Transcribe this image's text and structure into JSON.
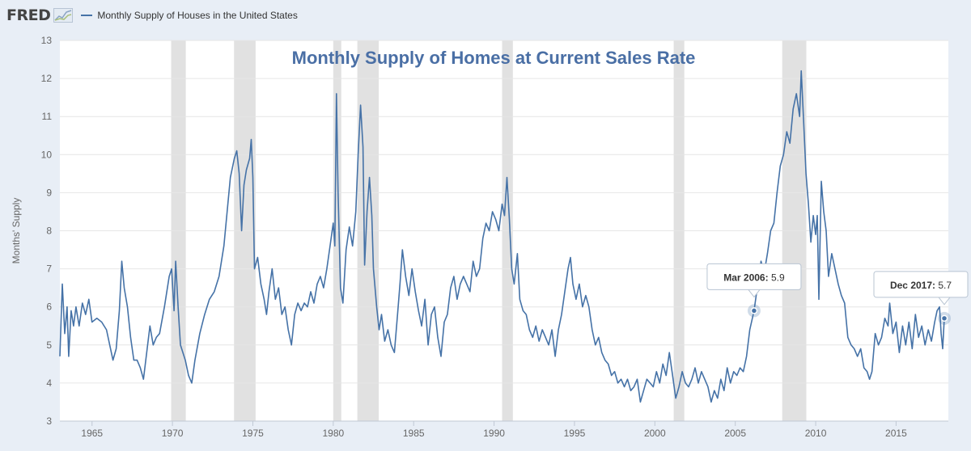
{
  "brand": {
    "logo_text": "FRED",
    "chart_icon": "chart-line-icon"
  },
  "legend": {
    "series_label": "Monthly Supply of Houses in the United States"
  },
  "colors": {
    "line": "#4572a7",
    "recession": "#e1e1e1",
    "grid": "#e6e6e6",
    "title": "#4a6fa5",
    "axis_text": "#666666",
    "page_bg": "#e8eef6"
  },
  "chart_data": {
    "type": "line",
    "title": "Monthly Supply of Homes at Current Sales Rate",
    "xlabel": "",
    "ylabel": "Months' Supply",
    "xlim": [
      1963.0,
      2018.25
    ],
    "ylim": [
      3,
      13
    ],
    "yticks": [
      3,
      4,
      5,
      6,
      7,
      8,
      9,
      10,
      11,
      12,
      13
    ],
    "xticks": [
      1965,
      1970,
      1975,
      1980,
      1985,
      1990,
      1995,
      2000,
      2005,
      2010,
      2015
    ],
    "grid": true,
    "legend_position": "top-left",
    "recessions": [
      [
        1969.92,
        1970.83
      ],
      [
        1973.83,
        1975.17
      ],
      [
        1980.0,
        1980.5
      ],
      [
        1981.5,
        1982.83
      ],
      [
        1990.5,
        1991.17
      ],
      [
        2001.17,
        2001.83
      ],
      [
        2007.92,
        2009.42
      ]
    ],
    "series": [
      {
        "name": "Monthly Supply of Houses in the United States",
        "points": [
          [
            1963.0,
            4.7
          ],
          [
            1963.15,
            6.6
          ],
          [
            1963.3,
            5.3
          ],
          [
            1963.45,
            6.0
          ],
          [
            1963.55,
            4.7
          ],
          [
            1963.7,
            5.9
          ],
          [
            1963.85,
            5.5
          ],
          [
            1964.0,
            6.0
          ],
          [
            1964.2,
            5.5
          ],
          [
            1964.4,
            6.1
          ],
          [
            1964.6,
            5.8
          ],
          [
            1964.8,
            6.2
          ],
          [
            1965.0,
            5.6
          ],
          [
            1965.3,
            5.7
          ],
          [
            1965.6,
            5.6
          ],
          [
            1965.9,
            5.4
          ],
          [
            1966.1,
            5.0
          ],
          [
            1966.3,
            4.6
          ],
          [
            1966.5,
            4.9
          ],
          [
            1966.7,
            5.9
          ],
          [
            1966.85,
            7.2
          ],
          [
            1967.0,
            6.5
          ],
          [
            1967.2,
            6.0
          ],
          [
            1967.4,
            5.2
          ],
          [
            1967.6,
            4.6
          ],
          [
            1967.8,
            4.6
          ],
          [
            1968.0,
            4.4
          ],
          [
            1968.2,
            4.1
          ],
          [
            1968.4,
            4.8
          ],
          [
            1968.6,
            5.5
          ],
          [
            1968.8,
            5.0
          ],
          [
            1969.0,
            5.2
          ],
          [
            1969.2,
            5.3
          ],
          [
            1969.5,
            6.0
          ],
          [
            1969.8,
            6.8
          ],
          [
            1969.95,
            7.0
          ],
          [
            1970.1,
            5.9
          ],
          [
            1970.2,
            7.2
          ],
          [
            1970.35,
            6.0
          ],
          [
            1970.5,
            5.0
          ],
          [
            1970.8,
            4.6
          ],
          [
            1971.0,
            4.2
          ],
          [
            1971.2,
            4.0
          ],
          [
            1971.4,
            4.6
          ],
          [
            1971.7,
            5.3
          ],
          [
            1972.0,
            5.8
          ],
          [
            1972.3,
            6.2
          ],
          [
            1972.6,
            6.4
          ],
          [
            1972.9,
            6.8
          ],
          [
            1973.2,
            7.6
          ],
          [
            1973.4,
            8.5
          ],
          [
            1973.6,
            9.4
          ],
          [
            1973.85,
            9.9
          ],
          [
            1974.0,
            10.1
          ],
          [
            1974.15,
            9.5
          ],
          [
            1974.3,
            8.0
          ],
          [
            1974.45,
            9.2
          ],
          [
            1974.6,
            9.6
          ],
          [
            1974.8,
            9.9
          ],
          [
            1974.9,
            10.4
          ],
          [
            1975.0,
            9.4
          ],
          [
            1975.1,
            7.0
          ],
          [
            1975.3,
            7.3
          ],
          [
            1975.5,
            6.6
          ],
          [
            1975.7,
            6.2
          ],
          [
            1975.85,
            5.8
          ],
          [
            1976.0,
            6.4
          ],
          [
            1976.2,
            7.0
          ],
          [
            1976.4,
            6.2
          ],
          [
            1976.6,
            6.5
          ],
          [
            1976.8,
            5.8
          ],
          [
            1977.0,
            6.0
          ],
          [
            1977.2,
            5.4
          ],
          [
            1977.4,
            5.0
          ],
          [
            1977.6,
            5.8
          ],
          [
            1977.8,
            6.1
          ],
          [
            1978.0,
            5.9
          ],
          [
            1978.2,
            6.1
          ],
          [
            1978.4,
            6.0
          ],
          [
            1978.6,
            6.4
          ],
          [
            1978.8,
            6.1
          ],
          [
            1979.0,
            6.6
          ],
          [
            1979.2,
            6.8
          ],
          [
            1979.4,
            6.5
          ],
          [
            1979.6,
            7.0
          ],
          [
            1979.8,
            7.6
          ],
          [
            1980.0,
            8.2
          ],
          [
            1980.1,
            7.6
          ],
          [
            1980.2,
            11.6
          ],
          [
            1980.3,
            9.0
          ],
          [
            1980.45,
            6.5
          ],
          [
            1980.6,
            6.1
          ],
          [
            1980.8,
            7.5
          ],
          [
            1981.0,
            8.1
          ],
          [
            1981.2,
            7.6
          ],
          [
            1981.4,
            8.5
          ],
          [
            1981.55,
            10.0
          ],
          [
            1981.7,
            11.3
          ],
          [
            1981.85,
            10.2
          ],
          [
            1981.95,
            7.1
          ],
          [
            1982.1,
            8.5
          ],
          [
            1982.25,
            9.4
          ],
          [
            1982.4,
            8.4
          ],
          [
            1982.5,
            7.0
          ],
          [
            1982.7,
            6.0
          ],
          [
            1982.85,
            5.4
          ],
          [
            1983.0,
            5.8
          ],
          [
            1983.2,
            5.1
          ],
          [
            1983.4,
            5.4
          ],
          [
            1983.6,
            5.0
          ],
          [
            1983.8,
            4.8
          ],
          [
            1984.0,
            5.8
          ],
          [
            1984.15,
            6.6
          ],
          [
            1984.3,
            7.5
          ],
          [
            1984.5,
            6.8
          ],
          [
            1984.7,
            6.3
          ],
          [
            1984.9,
            7.0
          ],
          [
            1985.1,
            6.4
          ],
          [
            1985.3,
            5.9
          ],
          [
            1985.5,
            5.5
          ],
          [
            1985.7,
            6.2
          ],
          [
            1985.9,
            5.0
          ],
          [
            1986.1,
            5.8
          ],
          [
            1986.3,
            6.0
          ],
          [
            1986.5,
            5.2
          ],
          [
            1986.7,
            4.7
          ],
          [
            1986.9,
            5.6
          ],
          [
            1987.1,
            5.8
          ],
          [
            1987.3,
            6.5
          ],
          [
            1987.5,
            6.8
          ],
          [
            1987.7,
            6.2
          ],
          [
            1987.9,
            6.6
          ],
          [
            1988.1,
            6.8
          ],
          [
            1988.3,
            6.6
          ],
          [
            1988.5,
            6.4
          ],
          [
            1988.7,
            7.2
          ],
          [
            1988.9,
            6.8
          ],
          [
            1989.1,
            7.0
          ],
          [
            1989.3,
            7.8
          ],
          [
            1989.5,
            8.2
          ],
          [
            1989.7,
            8.0
          ],
          [
            1989.9,
            8.5
          ],
          [
            1990.1,
            8.3
          ],
          [
            1990.3,
            8.0
          ],
          [
            1990.5,
            8.7
          ],
          [
            1990.65,
            8.4
          ],
          [
            1990.8,
            9.4
          ],
          [
            1990.95,
            8.3
          ],
          [
            1991.1,
            7.0
          ],
          [
            1991.25,
            6.6
          ],
          [
            1991.45,
            7.4
          ],
          [
            1991.6,
            6.2
          ],
          [
            1991.8,
            5.9
          ],
          [
            1992.0,
            5.8
          ],
          [
            1992.2,
            5.4
          ],
          [
            1992.4,
            5.2
          ],
          [
            1992.6,
            5.5
          ],
          [
            1992.8,
            5.1
          ],
          [
            1993.0,
            5.4
          ],
          [
            1993.2,
            5.2
          ],
          [
            1993.4,
            5.0
          ],
          [
            1993.6,
            5.4
          ],
          [
            1993.8,
            4.7
          ],
          [
            1994.0,
            5.4
          ],
          [
            1994.2,
            5.8
          ],
          [
            1994.4,
            6.4
          ],
          [
            1994.6,
            7.0
          ],
          [
            1994.75,
            7.3
          ],
          [
            1994.9,
            6.6
          ],
          [
            1995.1,
            6.2
          ],
          [
            1995.3,
            6.6
          ],
          [
            1995.5,
            6.0
          ],
          [
            1995.7,
            6.3
          ],
          [
            1995.9,
            6.0
          ],
          [
            1996.1,
            5.4
          ],
          [
            1996.3,
            5.0
          ],
          [
            1996.5,
            5.2
          ],
          [
            1996.7,
            4.8
          ],
          [
            1996.9,
            4.6
          ],
          [
            1997.1,
            4.5
          ],
          [
            1997.3,
            4.2
          ],
          [
            1997.5,
            4.3
          ],
          [
            1997.7,
            4.0
          ],
          [
            1997.9,
            4.1
          ],
          [
            1998.1,
            3.9
          ],
          [
            1998.3,
            4.1
          ],
          [
            1998.5,
            3.8
          ],
          [
            1998.7,
            3.9
          ],
          [
            1998.9,
            4.1
          ],
          [
            1999.1,
            3.5
          ],
          [
            1999.3,
            3.8
          ],
          [
            1999.5,
            4.1
          ],
          [
            1999.7,
            4.0
          ],
          [
            1999.9,
            3.9
          ],
          [
            2000.1,
            4.3
          ],
          [
            2000.3,
            4.0
          ],
          [
            2000.5,
            4.5
          ],
          [
            2000.7,
            4.2
          ],
          [
            2000.9,
            4.8
          ],
          [
            2001.1,
            4.2
          ],
          [
            2001.3,
            3.6
          ],
          [
            2001.5,
            3.9
          ],
          [
            2001.7,
            4.3
          ],
          [
            2001.9,
            4.0
          ],
          [
            2002.1,
            3.9
          ],
          [
            2002.3,
            4.1
          ],
          [
            2002.5,
            4.4
          ],
          [
            2002.7,
            4.0
          ],
          [
            2002.9,
            4.3
          ],
          [
            2003.1,
            4.1
          ],
          [
            2003.3,
            3.9
          ],
          [
            2003.5,
            3.5
          ],
          [
            2003.7,
            3.8
          ],
          [
            2003.9,
            3.6
          ],
          [
            2004.1,
            4.1
          ],
          [
            2004.3,
            3.8
          ],
          [
            2004.5,
            4.4
          ],
          [
            2004.7,
            4.0
          ],
          [
            2004.9,
            4.3
          ],
          [
            2005.1,
            4.2
          ],
          [
            2005.3,
            4.4
          ],
          [
            2005.5,
            4.3
          ],
          [
            2005.7,
            4.7
          ],
          [
            2005.9,
            5.4
          ],
          [
            2006.17,
            5.9
          ],
          [
            2006.4,
            6.6
          ],
          [
            2006.6,
            7.2
          ],
          [
            2006.8,
            6.9
          ],
          [
            2007.0,
            7.4
          ],
          [
            2007.2,
            8.0
          ],
          [
            2007.4,
            8.2
          ],
          [
            2007.6,
            9.0
          ],
          [
            2007.8,
            9.7
          ],
          [
            2008.0,
            10.0
          ],
          [
            2008.2,
            10.6
          ],
          [
            2008.4,
            10.3
          ],
          [
            2008.6,
            11.2
          ],
          [
            2008.8,
            11.6
          ],
          [
            2009.0,
            11.0
          ],
          [
            2009.1,
            12.2
          ],
          [
            2009.25,
            10.9
          ],
          [
            2009.4,
            9.5
          ],
          [
            2009.55,
            8.7
          ],
          [
            2009.7,
            7.7
          ],
          [
            2009.85,
            8.4
          ],
          [
            2010.0,
            7.9
          ],
          [
            2010.1,
            8.4
          ],
          [
            2010.2,
            6.2
          ],
          [
            2010.35,
            9.3
          ],
          [
            2010.5,
            8.5
          ],
          [
            2010.65,
            8.0
          ],
          [
            2010.8,
            6.8
          ],
          [
            2011.0,
            7.4
          ],
          [
            2011.2,
            7.0
          ],
          [
            2011.4,
            6.6
          ],
          [
            2011.6,
            6.3
          ],
          [
            2011.8,
            6.1
          ],
          [
            2012.0,
            5.2
          ],
          [
            2012.2,
            5.0
          ],
          [
            2012.4,
            4.9
          ],
          [
            2012.6,
            4.7
          ],
          [
            2012.8,
            4.9
          ],
          [
            2013.0,
            4.4
          ],
          [
            2013.2,
            4.3
          ],
          [
            2013.35,
            4.1
          ],
          [
            2013.5,
            4.3
          ],
          [
            2013.7,
            5.3
          ],
          [
            2013.9,
            5.0
          ],
          [
            2014.1,
            5.2
          ],
          [
            2014.3,
            5.7
          ],
          [
            2014.5,
            5.5
          ],
          [
            2014.6,
            6.1
          ],
          [
            2014.8,
            5.3
          ],
          [
            2015.0,
            5.6
          ],
          [
            2015.2,
            4.8
          ],
          [
            2015.4,
            5.5
          ],
          [
            2015.6,
            5.0
          ],
          [
            2015.8,
            5.6
          ],
          [
            2016.0,
            4.9
          ],
          [
            2016.2,
            5.8
          ],
          [
            2016.4,
            5.2
          ],
          [
            2016.6,
            5.5
          ],
          [
            2016.8,
            5.0
          ],
          [
            2017.0,
            5.4
          ],
          [
            2017.2,
            5.1
          ],
          [
            2017.4,
            5.6
          ],
          [
            2017.55,
            5.9
          ],
          [
            2017.7,
            6.0
          ],
          [
            2017.8,
            5.3
          ],
          [
            2017.9,
            4.9
          ],
          [
            2018.0,
            5.7
          ]
        ]
      }
    ],
    "annotations": [
      {
        "date": "Mar 2006",
        "value": "5.9",
        "x": 2006.17,
        "y": 5.9
      },
      {
        "date": "Dec 2017",
        "value": "5.7",
        "x": 2018.0,
        "y": 5.7
      }
    ]
  }
}
